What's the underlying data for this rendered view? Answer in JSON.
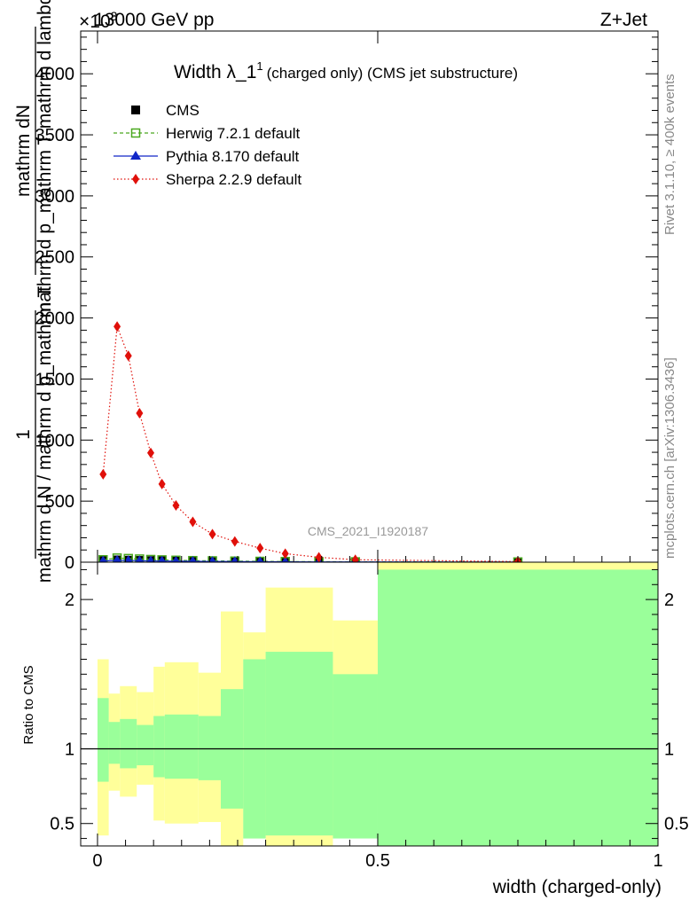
{
  "header": {
    "energy": "13000 GeV pp",
    "process": "Z+Jet",
    "exponent": "×10",
    "exponent_power": "3"
  },
  "chart_data": [
    {
      "type": "line",
      "title": "Width λ_1",
      "title_sup": "1",
      "title_suffix": "(charged only) (CMS jet substructure)",
      "xlabel": "width (charged-only)",
      "ylabel_numerator": "mathrm dN",
      "ylabel_denominator": "mathrm d p_mathrm T mathrm d lambda",
      "ylabel_prefix_num": "1",
      "ylabel_prefix_den": "mathrm d N / mathrm d p_mathrm T",
      "ylim": [
        0,
        4350
      ],
      "yticks": [
        0,
        500,
        1000,
        1500,
        2000,
        2500,
        3000,
        3500,
        4000
      ],
      "ytick_labels": [
        "0",
        "500",
        "1000",
        "1500",
        "2000",
        "2500",
        "3000",
        "3500",
        "4000"
      ],
      "xlim": [
        -0.03,
        1.0
      ],
      "analysis_label": "CMS_2021_I1920187",
      "side_label_top": "Rivet 3.1.10, ≥ 400k events",
      "side_label_bottom": "mcplots.cern.ch [arXiv:1306.3436]",
      "series": [
        {
          "name": "CMS",
          "color": "#000000",
          "marker": "square",
          "x": [
            0.01,
            0.035,
            0.055,
            0.075,
            0.095,
            0.115,
            0.14,
            0.17,
            0.205,
            0.245,
            0.29,
            0.335,
            0.395,
            0.46,
            0.75
          ],
          "values": [
            12,
            18,
            16,
            14,
            12,
            11,
            10,
            9,
            8,
            7,
            6,
            5,
            4,
            3,
            2
          ]
        },
        {
          "name": "Herwig 7.2.1 default",
          "color": "#4aa81f",
          "marker": "open-square",
          "x": [
            0.01,
            0.035,
            0.055,
            0.075,
            0.095,
            0.115,
            0.14,
            0.17,
            0.205,
            0.245,
            0.29,
            0.335,
            0.395,
            0.46,
            0.75
          ],
          "values": [
            20,
            34,
            30,
            26,
            22,
            19,
            16,
            13,
            11,
            9,
            7,
            5,
            4,
            3,
            2
          ]
        },
        {
          "name": "Pythia 8.170 default",
          "color": "#1026c8",
          "marker": "triangle",
          "x": [
            0.01,
            0.035,
            0.055,
            0.075,
            0.095,
            0.115,
            0.14,
            0.17,
            0.205,
            0.245,
            0.29,
            0.335,
            0.395,
            0.46,
            0.75
          ],
          "values": [
            10,
            15,
            14,
            12,
            10,
            9,
            8,
            7,
            6,
            5,
            4,
            3,
            2,
            2,
            1
          ]
        },
        {
          "name": "Sherpa 2.2.9 default",
          "color": "#e0100a",
          "marker": "diamond",
          "x": [
            0.01,
            0.035,
            0.055,
            0.075,
            0.095,
            0.115,
            0.14,
            0.17,
            0.205,
            0.245,
            0.29,
            0.335,
            0.395,
            0.46,
            0.75
          ],
          "values": [
            720,
            1930,
            1690,
            1220,
            895,
            640,
            465,
            330,
            230,
            170,
            115,
            70,
            40,
            20,
            5
          ]
        }
      ]
    },
    {
      "type": "area",
      "ylabel": "Ratio to CMS",
      "ylim": [
        0.35,
        2.25
      ],
      "yticks": [
        0.5,
        1,
        2
      ],
      "ytick_labels": [
        "0.5",
        "1",
        "2"
      ],
      "ytick_labels_right": [
        "0.5",
        "1",
        "2"
      ],
      "xticks": [
        0,
        0.5,
        1
      ],
      "xtick_labels": [
        "0",
        "0.5",
        "1"
      ],
      "xlim": [
        -0.03,
        1.0
      ],
      "reference_line": 1,
      "bins": [
        {
          "lo": 0.0,
          "hi": 0.02,
          "stat_lo": 0.78,
          "stat_hi": 1.34,
          "tot_lo": 0.42,
          "tot_hi": 1.6
        },
        {
          "lo": 0.02,
          "hi": 0.04,
          "stat_lo": 0.9,
          "stat_hi": 1.18,
          "tot_lo": 0.72,
          "tot_hi": 1.37
        },
        {
          "lo": 0.04,
          "hi": 0.07,
          "stat_lo": 0.87,
          "stat_hi": 1.2,
          "tot_lo": 0.68,
          "tot_hi": 1.42
        },
        {
          "lo": 0.07,
          "hi": 0.1,
          "stat_lo": 0.89,
          "stat_hi": 1.16,
          "tot_lo": 0.76,
          "tot_hi": 1.38
        },
        {
          "lo": 0.1,
          "hi": 0.12,
          "stat_lo": 0.81,
          "stat_hi": 1.22,
          "tot_lo": 0.52,
          "tot_hi": 1.55
        },
        {
          "lo": 0.12,
          "hi": 0.18,
          "stat_lo": 0.8,
          "stat_hi": 1.23,
          "tot_lo": 0.5,
          "tot_hi": 1.58
        },
        {
          "lo": 0.18,
          "hi": 0.22,
          "stat_lo": 0.79,
          "stat_hi": 1.22,
          "tot_lo": 0.51,
          "tot_hi": 1.51
        },
        {
          "lo": 0.22,
          "hi": 0.26,
          "stat_lo": 0.6,
          "stat_hi": 1.4,
          "tot_lo": 0.3,
          "tot_hi": 1.92
        },
        {
          "lo": 0.26,
          "hi": 0.3,
          "stat_lo": 0.4,
          "stat_hi": 1.6,
          "tot_lo": 0.4,
          "tot_hi": 1.78
        },
        {
          "lo": 0.3,
          "hi": 0.42,
          "stat_lo": 0.42,
          "stat_hi": 1.65,
          "tot_lo": 0.3,
          "tot_hi": 2.08
        },
        {
          "lo": 0.42,
          "hi": 0.5,
          "stat_lo": 0.4,
          "stat_hi": 1.5,
          "tot_lo": 0.62,
          "tot_hi": 1.86
        },
        {
          "lo": 0.5,
          "hi": 1.0,
          "stat_lo": 0.3,
          "stat_hi": 2.2,
          "tot_lo": 0.3,
          "tot_hi": 2.5
        }
      ]
    }
  ]
}
